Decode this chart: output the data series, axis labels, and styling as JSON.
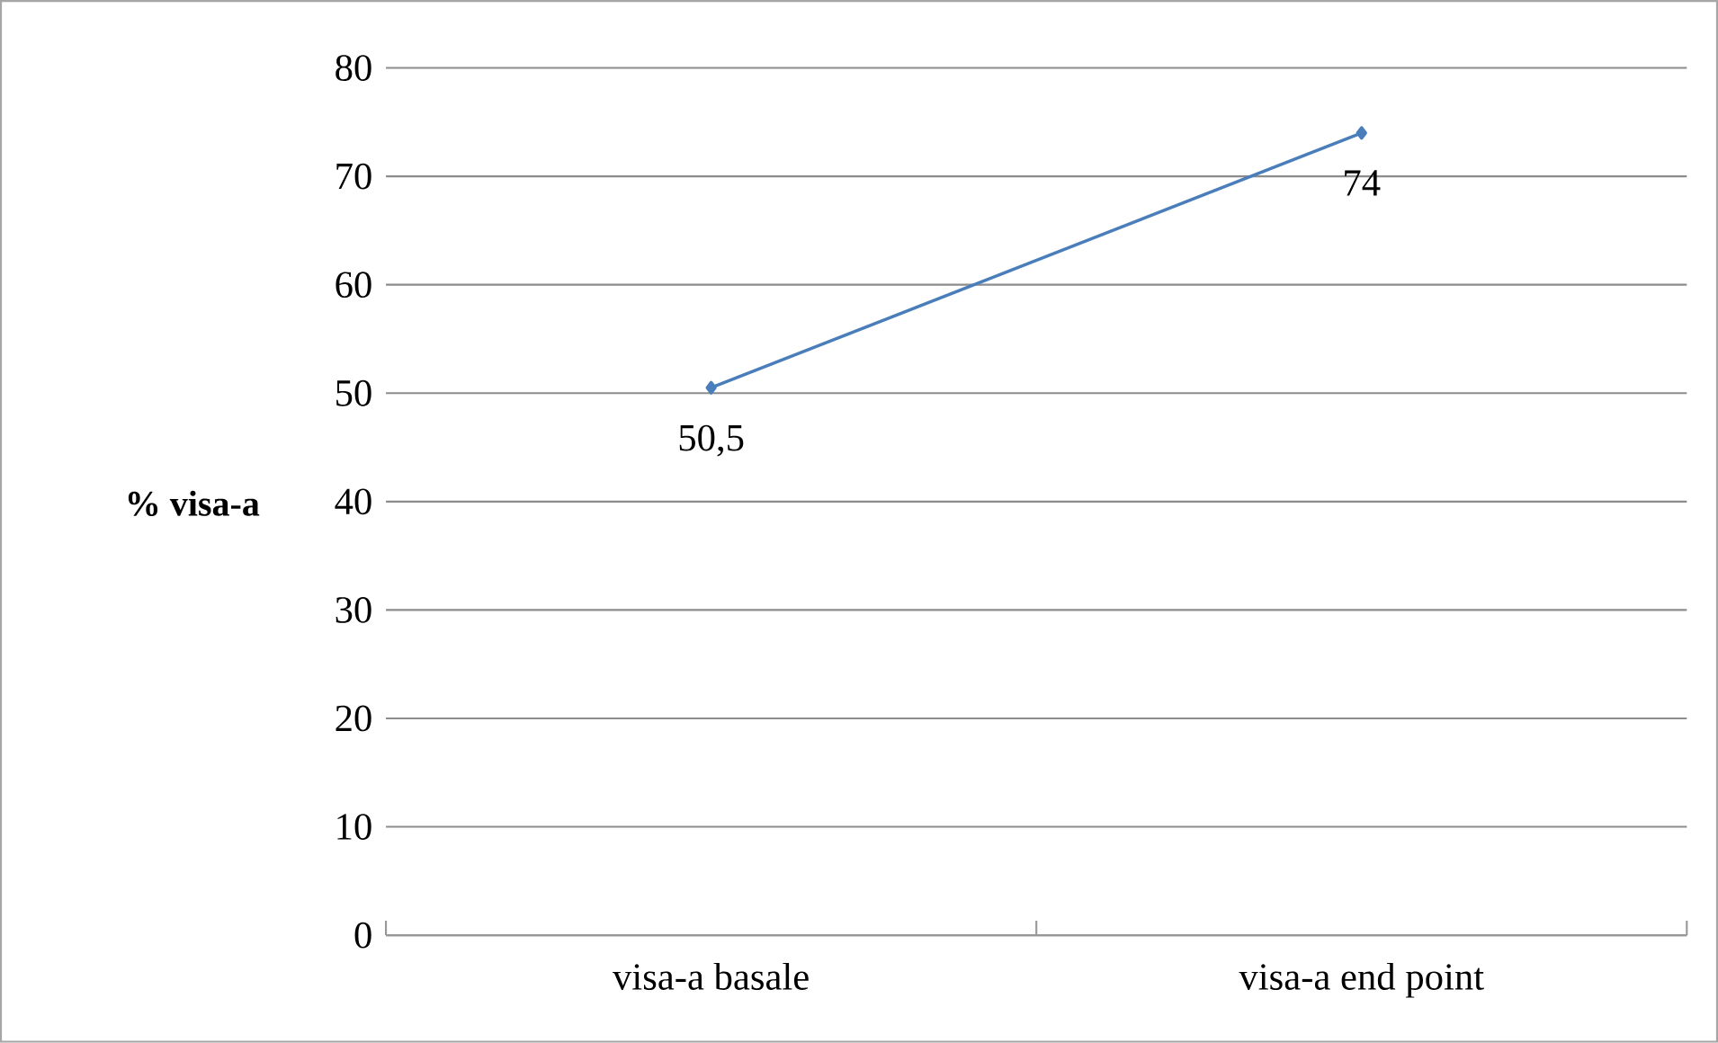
{
  "chart_data": {
    "type": "line",
    "ylabel": "% visa-a",
    "categories": [
      "visa-a basale",
      "visa-a end point"
    ],
    "series": [
      {
        "color": "#4a7ebb",
        "values": [
          50.5,
          74
        ],
        "value_labels": [
          "50,5",
          "74"
        ]
      }
    ],
    "ylim": [
      0,
      80
    ],
    "yticks": [
      0,
      10,
      20,
      30,
      40,
      50,
      60,
      70,
      80
    ],
    "grid": "y",
    "marker": "diamond",
    "line_style": "solid"
  }
}
